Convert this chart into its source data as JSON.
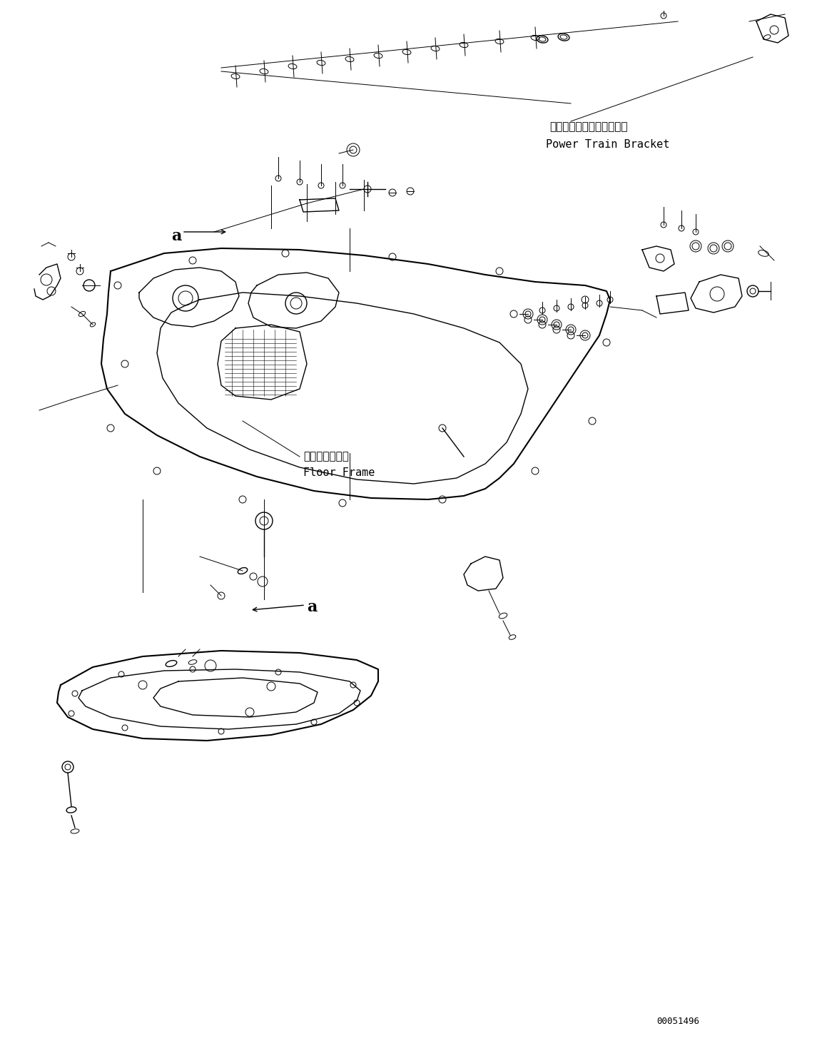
{
  "bg_color": "#ffffff",
  "line_color": "#000000",
  "fig_width": 11.59,
  "fig_height": 14.59,
  "dpi": 100,
  "label_power_train_jp": "パワートレインブラケット",
  "label_power_train_en": "Power Train Bracket",
  "label_floor_frame_jp": "フロアフレーム",
  "label_floor_frame_en": "Floor Frame",
  "label_a1": "a",
  "label_a2": "a",
  "part_number": "00051496",
  "font_size_jp": 11,
  "font_size_en": 11,
  "font_size_label": 16
}
